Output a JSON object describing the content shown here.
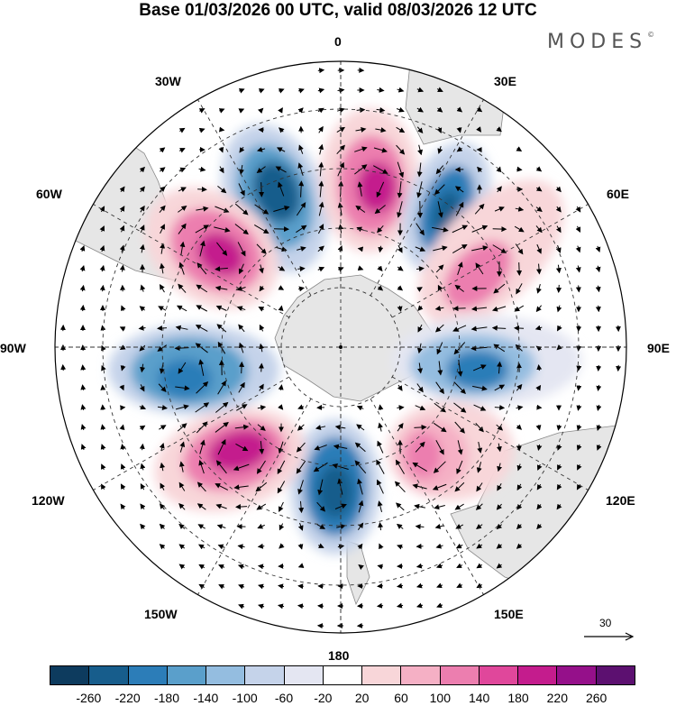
{
  "title": "Base 01/03/2026 00 UTC, valid 08/03/2026 12 UTC",
  "brand": "MODES",
  "brand_mark": "©",
  "longitude_labels": {
    "top": "0",
    "top_right": "30E",
    "right_upper": "60E",
    "right": "90E",
    "right_lower": "120E",
    "bottom_right": "150E",
    "bottom": "180",
    "bottom_left": "150W",
    "left_lower": "120W",
    "left": "90W",
    "left_upper": "60W",
    "top_left": "30W"
  },
  "reference_vector": {
    "value": "30",
    "icon": "arrow-right-icon"
  },
  "colorbar": {
    "colors": [
      "#0d3b5e",
      "#175d8c",
      "#2c7db8",
      "#5a9fcb",
      "#94bde0",
      "#c5d3ea",
      "#e4e6f2",
      "#ffffff",
      "#f8d6d9",
      "#f5b0c5",
      "#ec7eaf",
      "#e0479b",
      "#c41c8d",
      "#95108a",
      "#5c1070"
    ],
    "ticks": [
      "-260",
      "-220",
      "-180",
      "-140",
      "-100",
      "-60",
      "-20",
      "20",
      "60",
      "100",
      "140",
      "180",
      "220",
      "260"
    ]
  }
}
